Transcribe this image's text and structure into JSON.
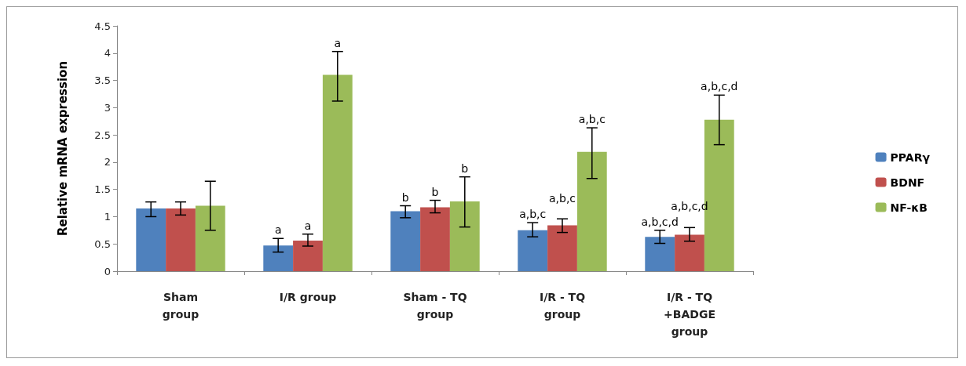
{
  "chart_data": {
    "type": "bar",
    "ylabel": "Relative mRNA expression",
    "categories": [
      "Sham\ngroup",
      "I/R group",
      "Sham - TQ\ngroup",
      "I/R - TQ\ngroup",
      "I/R - TQ\n+BADGE\ngroup"
    ],
    "series": [
      {
        "name": "PPARγ",
        "color": "#4f81bd",
        "values": [
          1.15,
          0.47,
          1.1,
          0.75,
          0.63
        ],
        "errors": [
          [
            1.0,
            1.27
          ],
          [
            0.35,
            0.6
          ],
          [
            0.98,
            1.2
          ],
          [
            0.63,
            0.89
          ],
          [
            0.51,
            0.75
          ]
        ],
        "value_labels": [
          null,
          "a",
          "b",
          "a,b,c",
          "a,b,c,d"
        ]
      },
      {
        "name": "BDNF",
        "color": "#c0504d",
        "values": [
          1.15,
          0.56,
          1.17,
          0.84,
          0.67
        ],
        "errors": [
          [
            1.03,
            1.27
          ],
          [
            0.46,
            0.68
          ],
          [
            1.07,
            1.3
          ],
          [
            0.71,
            0.96
          ],
          [
            0.55,
            0.8
          ]
        ],
        "value_labels": [
          null,
          "a",
          "b",
          "a,b,c",
          "a,b,c,d"
        ]
      },
      {
        "name": "NF-κB",
        "color": "#9bbb59",
        "values": [
          1.2,
          3.6,
          1.28,
          2.19,
          2.78
        ],
        "errors": [
          [
            0.75,
            1.65
          ],
          [
            3.12,
            4.03
          ],
          [
            0.81,
            1.73
          ],
          [
            1.7,
            2.63
          ],
          [
            2.32,
            3.23
          ]
        ],
        "value_labels": [
          null,
          "a",
          "b",
          "a,b,c",
          "a,b,c,d"
        ]
      }
    ],
    "ylim": [
      0,
      4.5
    ],
    "yticks": [
      0,
      0.5,
      1,
      1.5,
      2,
      2.5,
      3,
      3.5,
      4,
      4.5
    ],
    "grid": false,
    "legend": "right"
  }
}
